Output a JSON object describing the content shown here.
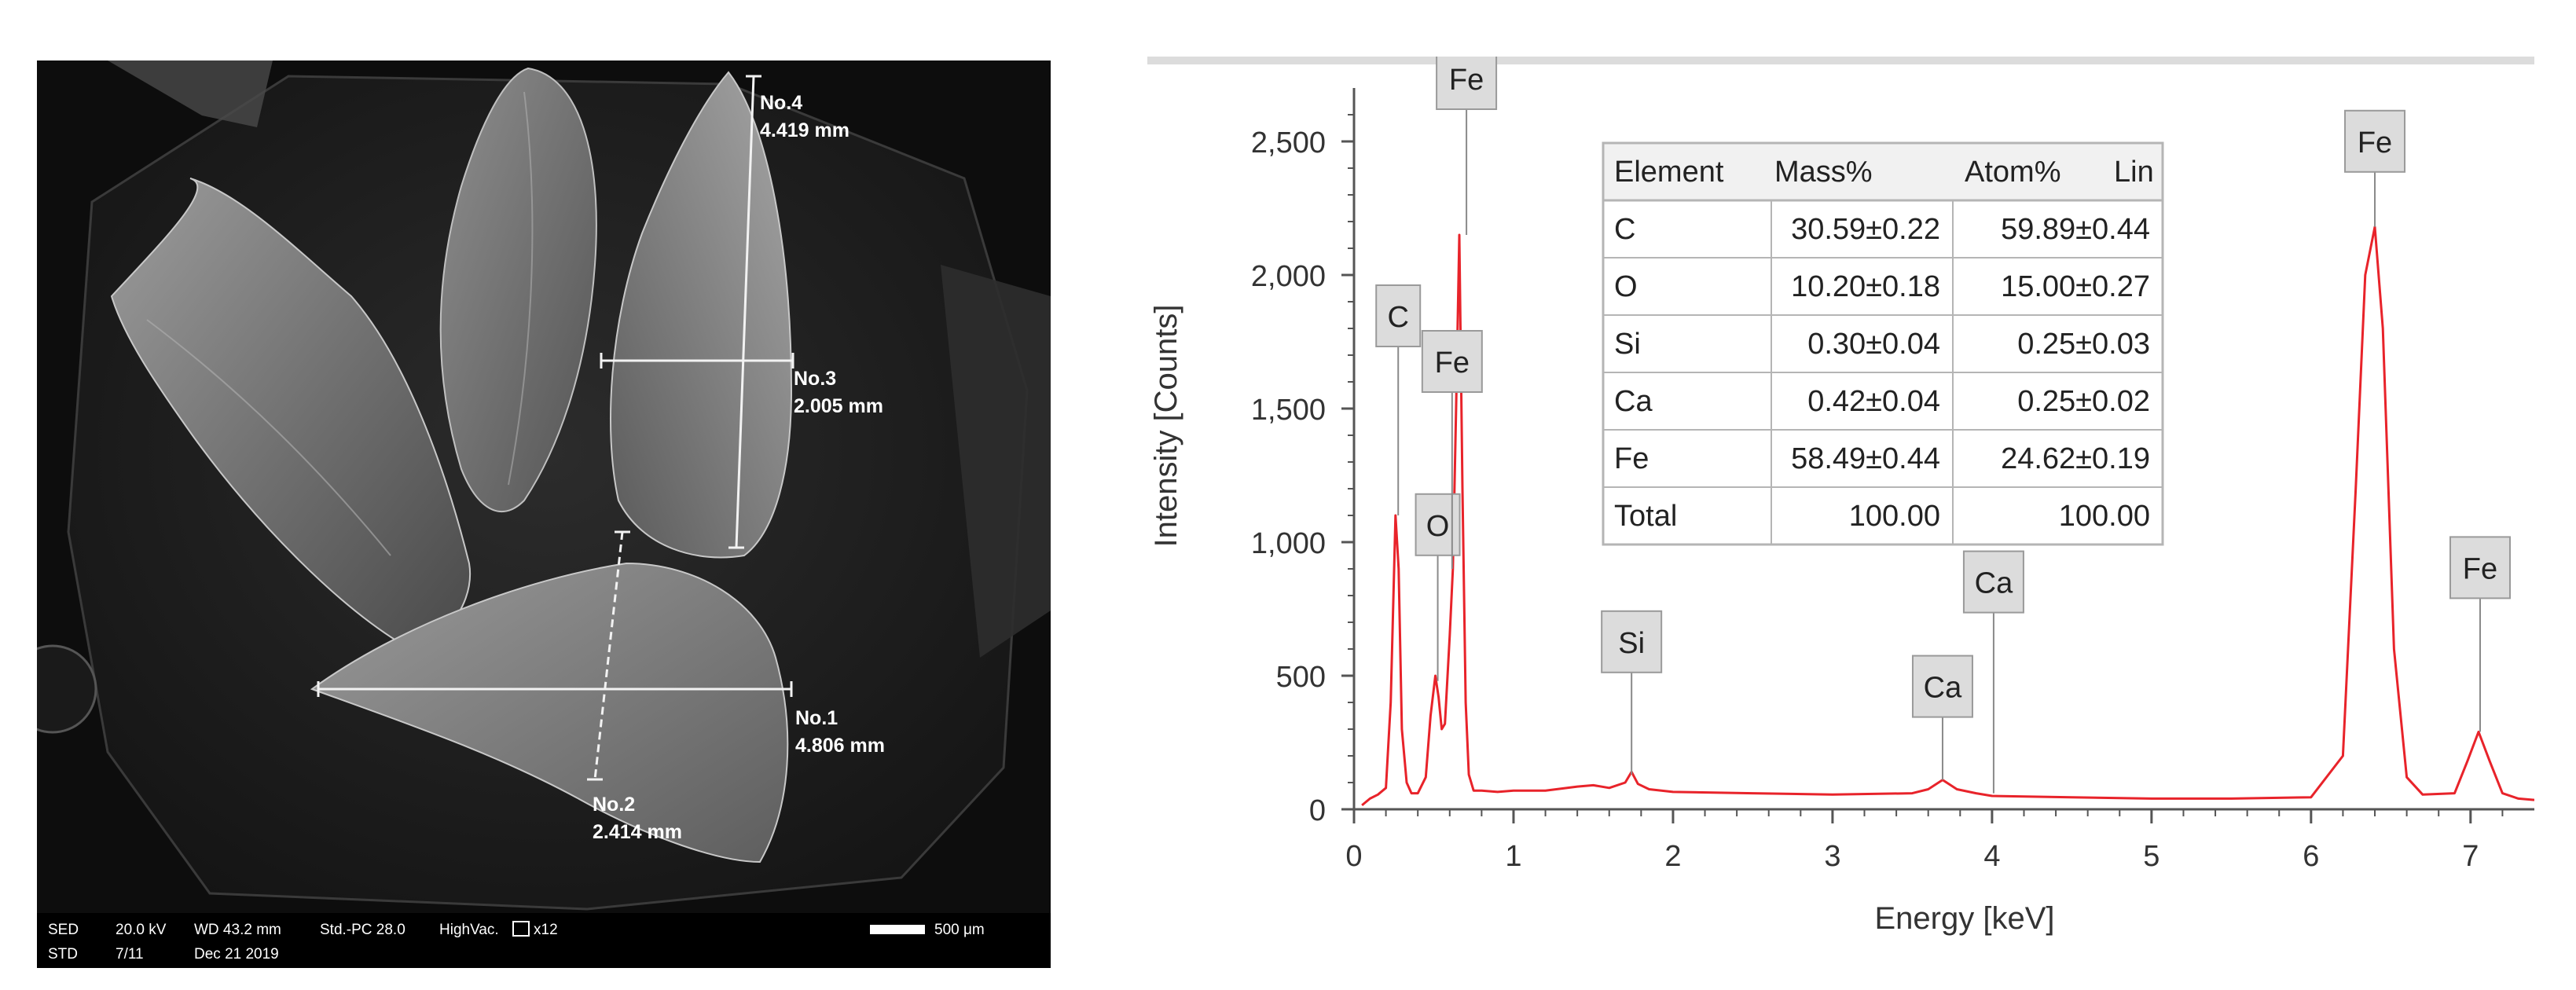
{
  "sem": {
    "measurements": [
      {
        "id": "No.1",
        "value": "4.806 mm"
      },
      {
        "id": "No.2",
        "value": "2.414 mm"
      },
      {
        "id": "No.3",
        "value": "2.005 mm"
      },
      {
        "id": "No.4",
        "value": "4.419 mm"
      }
    ],
    "info_bar": {
      "row1": [
        "SED",
        "20.0 kV",
        "WD 43.2 mm",
        "Std.-PC 28.0",
        "HighVac.",
        "x12"
      ],
      "row2": [
        "STD",
        "7/11",
        "Dec 21 2019"
      ],
      "scale_label": "500 μm"
    }
  },
  "chart_data": {
    "type": "line",
    "xlabel": "Energy [keV]",
    "ylabel": "Intensity [Counts]",
    "xlim": [
      0,
      7.4
    ],
    "ylim": [
      0,
      2700
    ],
    "x_ticks": [
      0,
      1,
      2,
      3,
      4,
      5,
      6,
      7
    ],
    "y_ticks": [
      0,
      500,
      1000,
      1500,
      2000,
      2500
    ],
    "y_tick_labels": [
      "0",
      "500",
      "1,000",
      "1,500",
      "2,000",
      "2,500"
    ],
    "grid": false,
    "series": [
      {
        "color": "#e8232a",
        "x": [
          0.05,
          0.1,
          0.15,
          0.2,
          0.23,
          0.26,
          0.28,
          0.3,
          0.33,
          0.36,
          0.4,
          0.45,
          0.48,
          0.51,
          0.53,
          0.55,
          0.57,
          0.6,
          0.62,
          0.64,
          0.66,
          0.68,
          0.7,
          0.72,
          0.75,
          0.8,
          0.9,
          1.0,
          1.2,
          1.4,
          1.5,
          1.6,
          1.7,
          1.74,
          1.78,
          1.85,
          2.0,
          2.5,
          3.0,
          3.5,
          3.6,
          3.69,
          3.78,
          3.9,
          4.0,
          4.5,
          5.0,
          5.5,
          6.0,
          6.2,
          6.28,
          6.34,
          6.4,
          6.45,
          6.52,
          6.6,
          6.7,
          6.9,
          6.98,
          7.05,
          7.12,
          7.2,
          7.3,
          7.4
        ],
        "y": [
          15,
          40,
          55,
          80,
          400,
          1100,
          900,
          300,
          100,
          60,
          60,
          120,
          350,
          500,
          420,
          300,
          320,
          650,
          900,
          1500,
          2150,
          1200,
          400,
          130,
          70,
          70,
          65,
          70,
          70,
          85,
          90,
          80,
          100,
          140,
          95,
          75,
          65,
          60,
          55,
          60,
          75,
          110,
          75,
          60,
          50,
          45,
          40,
          40,
          45,
          200,
          1200,
          2000,
          2180,
          1800,
          600,
          120,
          55,
          60,
          180,
          290,
          180,
          60,
          40,
          35
        ]
      }
    ],
    "peak_labels": [
      {
        "label": "C",
        "x": 0.277,
        "y": 1100
      },
      {
        "label": "O",
        "x": 0.525,
        "y": 480
      },
      {
        "label": "Fe",
        "x": 0.615,
        "y": 900
      },
      {
        "label": "Fe",
        "x": 0.705,
        "y": 2150
      },
      {
        "label": "Si",
        "x": 1.74,
        "y": 130
      },
      {
        "label": "Ca",
        "x": 3.69,
        "y": 110
      },
      {
        "label": "Ca",
        "x": 4.01,
        "y": 60
      },
      {
        "label": "Fe",
        "x": 6.4,
        "y": 2180
      },
      {
        "label": "Fe",
        "x": 7.06,
        "y": 290
      }
    ]
  },
  "composition_table": {
    "headers": [
      "Element",
      "Mass%",
      "Atom%",
      "Lin"
    ],
    "rows": [
      [
        "C",
        "30.59±0.22",
        "59.89±0.44"
      ],
      [
        "O",
        "10.20±0.18",
        "15.00±0.27"
      ],
      [
        "Si",
        "0.30±0.04",
        "0.25±0.03"
      ],
      [
        "Ca",
        "0.42±0.04",
        "0.25±0.02"
      ],
      [
        "Fe",
        "58.49±0.44",
        "24.62±0.19"
      ],
      [
        "Total",
        "100.00",
        "100.00"
      ]
    ]
  }
}
